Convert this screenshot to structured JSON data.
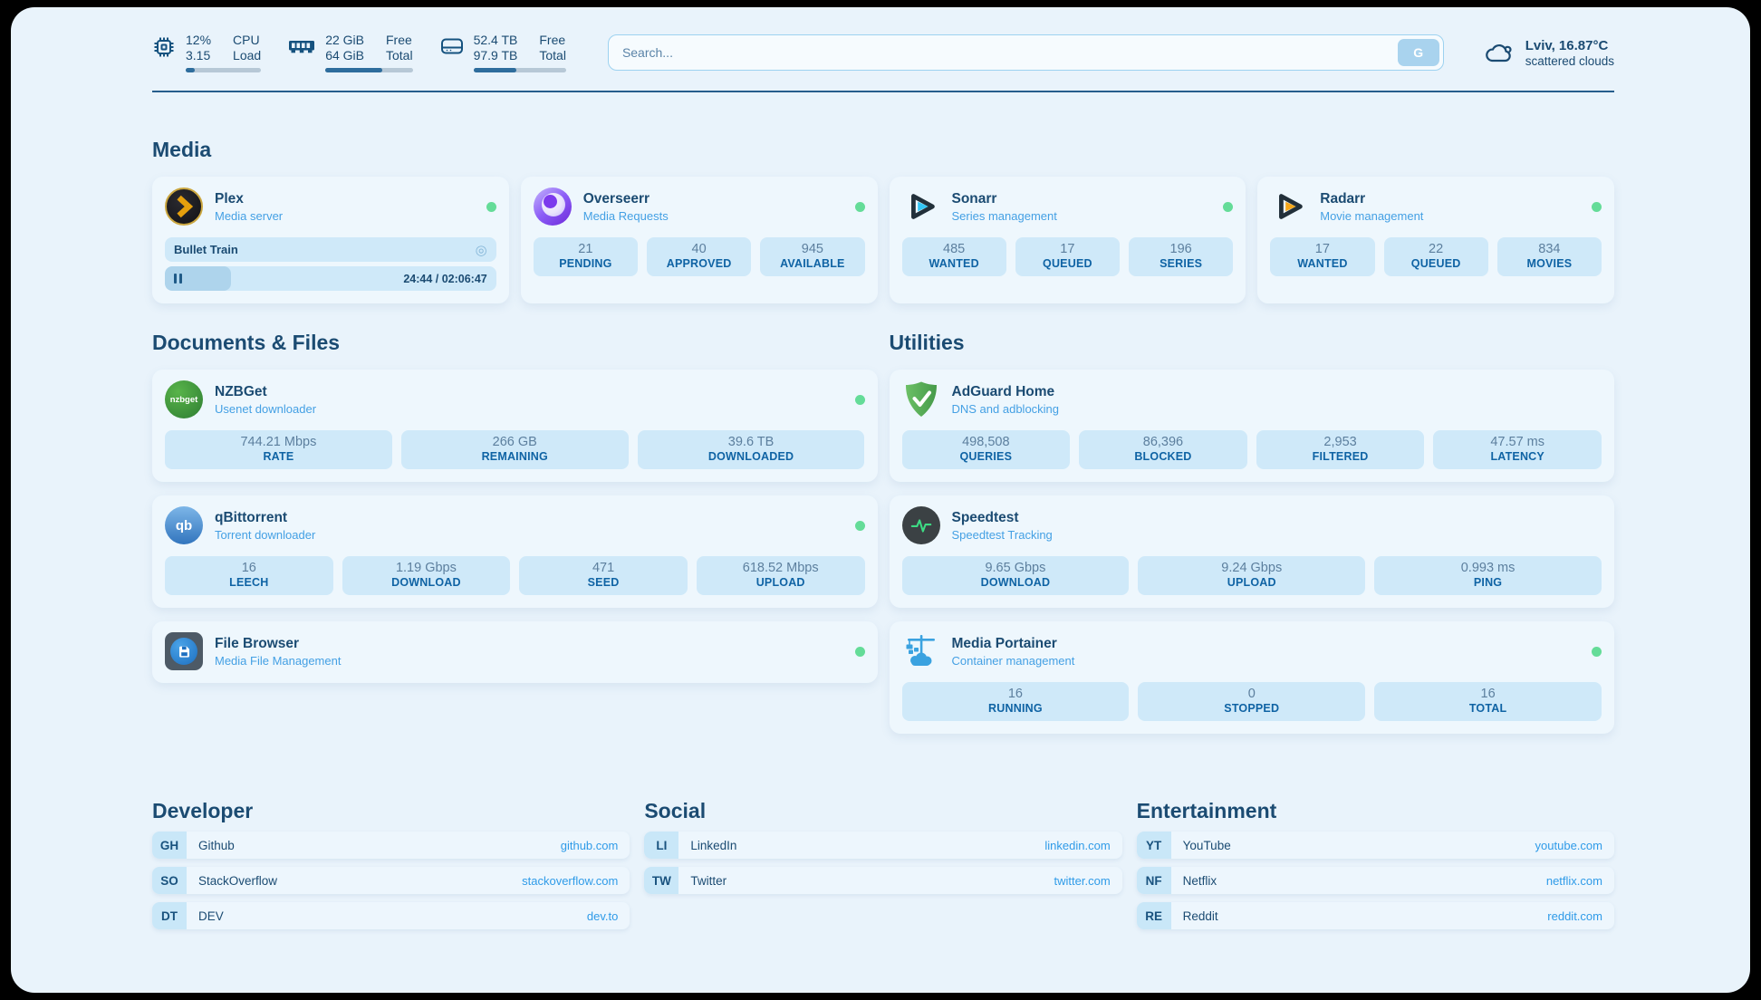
{
  "header": {
    "cpu": {
      "stat_top": "12%",
      "stat_bottom": "3.15",
      "label_top": "CPU",
      "label_bottom": "Load",
      "progress_pct": 12
    },
    "memory": {
      "stat_top": "22 GiB",
      "stat_bottom": "64 GiB",
      "label_top": "Free",
      "label_bottom": "Total",
      "progress_pct": 65
    },
    "disk": {
      "stat_top": "52.4 TB",
      "stat_bottom": "97.9 TB",
      "label_top": "Free",
      "label_bottom": "Total",
      "progress_pct": 46
    },
    "search": {
      "placeholder": "Search...",
      "button_label": "G"
    },
    "weather": {
      "location": "Lviv, 16.87°C",
      "condition": "scattered clouds"
    }
  },
  "icons": {
    "now_playing_button": "◎"
  },
  "media": {
    "title": "Media",
    "plex": {
      "name": "Plex",
      "subtitle": "Media server",
      "now_playing": "Bullet Train",
      "time": "24:44 / 02:06:47",
      "progress_pct": 20
    },
    "overseerr": {
      "name": "Overseerr",
      "subtitle": "Media Requests",
      "stats": [
        {
          "value": "21",
          "label": "PENDING"
        },
        {
          "value": "40",
          "label": "APPROVED"
        },
        {
          "value": "945",
          "label": "AVAILABLE"
        }
      ]
    },
    "sonarr": {
      "name": "Sonarr",
      "subtitle": "Series management",
      "stats": [
        {
          "value": "485",
          "label": "WANTED"
        },
        {
          "value": "17",
          "label": "QUEUED"
        },
        {
          "value": "196",
          "label": "SERIES"
        }
      ]
    },
    "radarr": {
      "name": "Radarr",
      "subtitle": "Movie management",
      "stats": [
        {
          "value": "17",
          "label": "WANTED"
        },
        {
          "value": "22",
          "label": "QUEUED"
        },
        {
          "value": "834",
          "label": "MOVIES"
        }
      ]
    }
  },
  "documents": {
    "title": "Documents & Files",
    "nzbget": {
      "name": "NZBGet",
      "subtitle": "Usenet downloader",
      "icon_text": "nzbget",
      "stats": [
        {
          "value": "744.21 Mbps",
          "label": "RATE"
        },
        {
          "value": "266 GB",
          "label": "REMAINING"
        },
        {
          "value": "39.6 TB",
          "label": "DOWNLOADED"
        }
      ]
    },
    "qbittorrent": {
      "name": "qBittorrent",
      "subtitle": "Torrent downloader",
      "icon_text": "qb",
      "stats": [
        {
          "value": "16",
          "label": "LEECH"
        },
        {
          "value": "1.19 Gbps",
          "label": "DOWNLOAD"
        },
        {
          "value": "471",
          "label": "SEED"
        },
        {
          "value": "618.52 Mbps",
          "label": "UPLOAD"
        }
      ]
    },
    "filebrowser": {
      "name": "File Browser",
      "subtitle": "Media File Management"
    }
  },
  "utilities": {
    "title": "Utilities",
    "adguard": {
      "name": "AdGuard Home",
      "subtitle": "DNS and adblocking",
      "stats": [
        {
          "value": "498,508",
          "label": "QUERIES"
        },
        {
          "value": "86,396",
          "label": "BLOCKED"
        },
        {
          "value": "2,953",
          "label": "FILTERED"
        },
        {
          "value": "47.57 ms",
          "label": "LATENCY"
        }
      ]
    },
    "speedtest": {
      "name": "Speedtest",
      "subtitle": "Speedtest Tracking",
      "stats": [
        {
          "value": "9.65 Gbps",
          "label": "DOWNLOAD"
        },
        {
          "value": "9.24 Gbps",
          "label": "UPLOAD"
        },
        {
          "value": "0.993 ms",
          "label": "PING"
        }
      ]
    },
    "portainer": {
      "name": "Media Portainer",
      "subtitle": "Container management",
      "stats": [
        {
          "value": "16",
          "label": "RUNNING"
        },
        {
          "value": "0",
          "label": "STOPPED"
        },
        {
          "value": "16",
          "label": "TOTAL"
        }
      ]
    }
  },
  "bookmarks": {
    "developer": {
      "title": "Developer",
      "items": [
        {
          "abbr": "GH",
          "name": "Github",
          "url": "github.com"
        },
        {
          "abbr": "SO",
          "name": "StackOverflow",
          "url": "stackoverflow.com"
        },
        {
          "abbr": "DT",
          "name": "DEV",
          "url": "dev.to"
        }
      ]
    },
    "social": {
      "title": "Social",
      "items": [
        {
          "abbr": "LI",
          "name": "LinkedIn",
          "url": "linkedin.com"
        },
        {
          "abbr": "TW",
          "name": "Twitter",
          "url": "twitter.com"
        }
      ]
    },
    "entertainment": {
      "title": "Entertainment",
      "items": [
        {
          "abbr": "YT",
          "name": "YouTube",
          "url": "youtube.com"
        },
        {
          "abbr": "NF",
          "name": "Netflix",
          "url": "netflix.com"
        },
        {
          "abbr": "RE",
          "name": "Reddit",
          "url": "reddit.com"
        }
      ]
    }
  },
  "colors": {
    "accent": "#2f9be8",
    "status_online": "#64dc98",
    "heading": "#1b4b72",
    "stat_label": "#0f63a4"
  }
}
